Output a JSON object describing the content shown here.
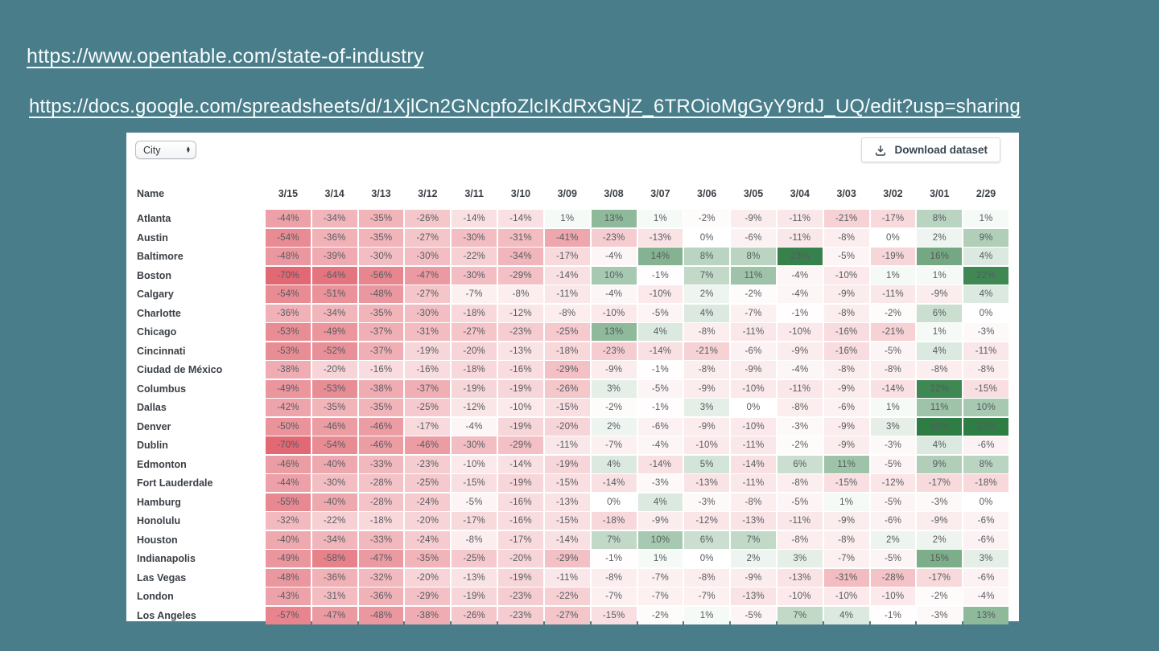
{
  "page": {
    "background_color": "#4a7d8a"
  },
  "links": [
    {
      "text": "https://www.opentable.com/state-of-industry"
    },
    {
      "text": "https://docs.google.com/spreadsheets/d/1XjlCn2GNcpfoZlcIKdRxGNjZ_6TROioMgGyY9rdJ_UQ/edit?usp=sharing"
    }
  ],
  "toolbar": {
    "city_filter_value": "City",
    "download_label": "Download dataset"
  },
  "chart_data": {
    "type": "heatmap",
    "title": "",
    "name_header": "Name",
    "columns": [
      "3/15",
      "3/14",
      "3/13",
      "3/12",
      "3/11",
      "3/10",
      "3/09",
      "3/08",
      "3/07",
      "3/06",
      "3/05",
      "3/04",
      "3/03",
      "3/02",
      "3/01",
      "2/29"
    ],
    "value_format": "percent",
    "heat": {
      "negative_color": "#e26873",
      "positive_color": "#2e7d44",
      "neutral_color": "#ffffff",
      "negative_cap": 70,
      "positive_cap": 24
    },
    "rows": [
      {
        "name": "Atlanta",
        "values": [
          -44,
          -34,
          -35,
          -26,
          -14,
          -14,
          1,
          13,
          1,
          -2,
          -9,
          -11,
          -21,
          -17,
          8,
          1
        ]
      },
      {
        "name": "Austin",
        "values": [
          -54,
          -36,
          -35,
          -27,
          -30,
          -31,
          -41,
          -23,
          -13,
          0,
          -6,
          -11,
          -8,
          0,
          2,
          9
        ]
      },
      {
        "name": "Baltimore",
        "values": [
          -48,
          -39,
          -30,
          -30,
          -22,
          -34,
          -17,
          -4,
          14,
          8,
          8,
          23,
          -5,
          -19,
          16,
          4
        ]
      },
      {
        "name": "Boston",
        "values": [
          -70,
          -64,
          -56,
          -47,
          -30,
          -29,
          -14,
          10,
          -1,
          7,
          11,
          -4,
          -10,
          1,
          1,
          22
        ]
      },
      {
        "name": "Calgary",
        "values": [
          -54,
          -51,
          -48,
          -27,
          -7,
          -8,
          -11,
          -4,
          -10,
          2,
          -2,
          -4,
          -9,
          -11,
          -9,
          4
        ]
      },
      {
        "name": "Charlotte",
        "values": [
          -36,
          -34,
          -35,
          -30,
          -18,
          -12,
          -8,
          -10,
          -5,
          4,
          -7,
          -1,
          -8,
          -2,
          6,
          0
        ]
      },
      {
        "name": "Chicago",
        "values": [
          -53,
          -49,
          -37,
          -31,
          -27,
          -23,
          -25,
          13,
          4,
          -8,
          -11,
          -10,
          -16,
          -21,
          1,
          -3
        ]
      },
      {
        "name": "Cincinnati",
        "values": [
          -53,
          -52,
          -37,
          -19,
          -20,
          -13,
          -18,
          -23,
          -14,
          -21,
          -6,
          -9,
          -16,
          -5,
          4,
          -11
        ]
      },
      {
        "name": "Ciudad de México",
        "values": [
          -38,
          -20,
          -16,
          -16,
          -18,
          -16,
          -29,
          -9,
          -1,
          -8,
          -9,
          -4,
          -8,
          -8,
          -8,
          -8
        ]
      },
      {
        "name": "Columbus",
        "values": [
          -49,
          -53,
          -38,
          -37,
          -19,
          -19,
          -26,
          3,
          -5,
          -9,
          -10,
          -11,
          -9,
          -14,
          22,
          -15
        ]
      },
      {
        "name": "Dallas",
        "values": [
          -42,
          -35,
          -35,
          -25,
          -12,
          -10,
          -15,
          -2,
          -1,
          3,
          0,
          -8,
          -6,
          1,
          11,
          10
        ]
      },
      {
        "name": "Denver",
        "values": [
          -50,
          -46,
          -46,
          -17,
          -4,
          -19,
          -20,
          2,
          -6,
          -9,
          -10,
          -3,
          -9,
          3,
          38,
          27
        ]
      },
      {
        "name": "Dublin",
        "values": [
          -70,
          -54,
          -46,
          -46,
          -30,
          -29,
          -11,
          -7,
          -4,
          -10,
          -11,
          -2,
          -9,
          -3,
          4,
          -6
        ]
      },
      {
        "name": "Edmonton",
        "values": [
          -46,
          -40,
          -33,
          -23,
          -10,
          -14,
          -19,
          4,
          -14,
          5,
          -14,
          6,
          11,
          -5,
          9,
          8
        ]
      },
      {
        "name": "Fort Lauderdale",
        "values": [
          -44,
          -30,
          -28,
          -25,
          -15,
          -19,
          -15,
          -14,
          -3,
          -13,
          -11,
          -8,
          -15,
          -12,
          -17,
          -18
        ]
      },
      {
        "name": "Hamburg",
        "values": [
          -55,
          -40,
          -28,
          -24,
          -5,
          -16,
          -13,
          0,
          4,
          -3,
          -8,
          -5,
          1,
          -5,
          -3,
          0
        ]
      },
      {
        "name": "Honolulu",
        "values": [
          -32,
          -22,
          -18,
          -20,
          -17,
          -16,
          -15,
          -18,
          -9,
          -12,
          -13,
          -11,
          -9,
          -6,
          -9,
          -6
        ]
      },
      {
        "name": "Houston",
        "values": [
          -40,
          -34,
          -33,
          -24,
          -8,
          -17,
          -14,
          7,
          10,
          6,
          7,
          -8,
          -8,
          2,
          2,
          -6
        ]
      },
      {
        "name": "Indianapolis",
        "values": [
          -49,
          -58,
          -47,
          -35,
          -25,
          -20,
          -29,
          -1,
          1,
          0,
          2,
          3,
          -7,
          -5,
          15,
          3
        ]
      },
      {
        "name": "Las Vegas",
        "values": [
          -48,
          -36,
          -32,
          -20,
          -13,
          -19,
          -11,
          -8,
          -7,
          -8,
          -9,
          -13,
          -31,
          -28,
          -17,
          -6
        ]
      },
      {
        "name": "London",
        "values": [
          -43,
          -31,
          -36,
          -29,
          -19,
          -23,
          -22,
          -7,
          -7,
          -7,
          -13,
          -10,
          -10,
          -10,
          -2,
          -4
        ]
      },
      {
        "name": "Los Angeles",
        "values": [
          -57,
          -47,
          -48,
          -38,
          -26,
          -23,
          -27,
          -15,
          -2,
          1,
          -5,
          7,
          4,
          -1,
          -3,
          13
        ]
      }
    ]
  }
}
